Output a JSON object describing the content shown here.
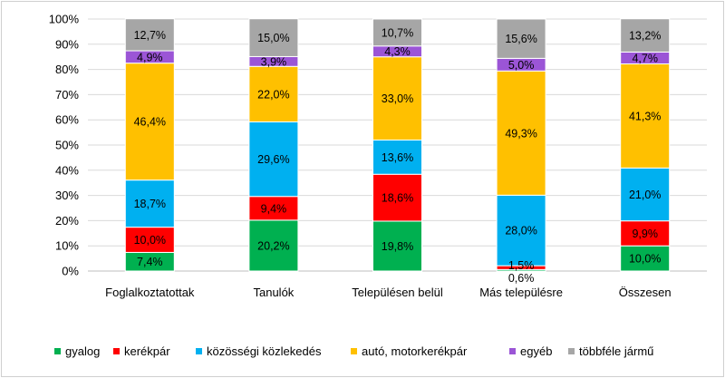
{
  "chart_data": {
    "type": "bar",
    "stacked": true,
    "percent": true,
    "categories": [
      "Foglalkoztatottak",
      "Tanulók",
      "Településen belül",
      "Más településre",
      "Összesen"
    ],
    "y_ticks": [
      "0%",
      "10%",
      "20%",
      "30%",
      "40%",
      "50%",
      "60%",
      "70%",
      "80%",
      "90%",
      "100%"
    ],
    "ylim": [
      0,
      100
    ],
    "grid": true,
    "legend_position": "bottom",
    "series": [
      {
        "name": "gyalog",
        "color": "#00b050",
        "values": [
          7.4,
          20.2,
          19.8,
          0.6,
          10.0
        ],
        "labels": [
          "7,4%",
          "20,2%",
          "19,8%",
          "0,6%",
          "10,0%"
        ]
      },
      {
        "name": "kerékpár",
        "color": "#ff0000",
        "values": [
          10.0,
          9.4,
          18.6,
          1.5,
          9.9
        ],
        "labels": [
          "10,0%",
          "9,4%",
          "18,6%",
          "1,5%",
          "9,9%"
        ]
      },
      {
        "name": "közösségi közlekedés",
        "color": "#00b0f0",
        "values": [
          18.7,
          29.6,
          13.6,
          28.0,
          21.0
        ],
        "labels": [
          "18,7%",
          "29,6%",
          "13,6%",
          "28,0%",
          "21,0%"
        ]
      },
      {
        "name": "autó, motorkerékpár",
        "color": "#ffc000",
        "values": [
          46.4,
          22.0,
          33.0,
          49.3,
          41.3
        ],
        "labels": [
          "46,4%",
          "22,0%",
          "33,0%",
          "49,3%",
          "41,3%"
        ]
      },
      {
        "name": "egyéb",
        "color": "#9b55d6",
        "values": [
          4.9,
          3.9,
          4.3,
          5.0,
          4.7
        ],
        "labels": [
          "4,9%",
          "3,9%",
          "4,3%",
          "5,0%",
          "4,7%"
        ]
      },
      {
        "name": "többféle jármű",
        "color": "#a6a6a6",
        "values": [
          12.7,
          15.0,
          10.7,
          15.6,
          13.2
        ],
        "labels": [
          "12,7%",
          "15,0%",
          "10,7%",
          "15,6%",
          "13,2%"
        ]
      }
    ]
  }
}
